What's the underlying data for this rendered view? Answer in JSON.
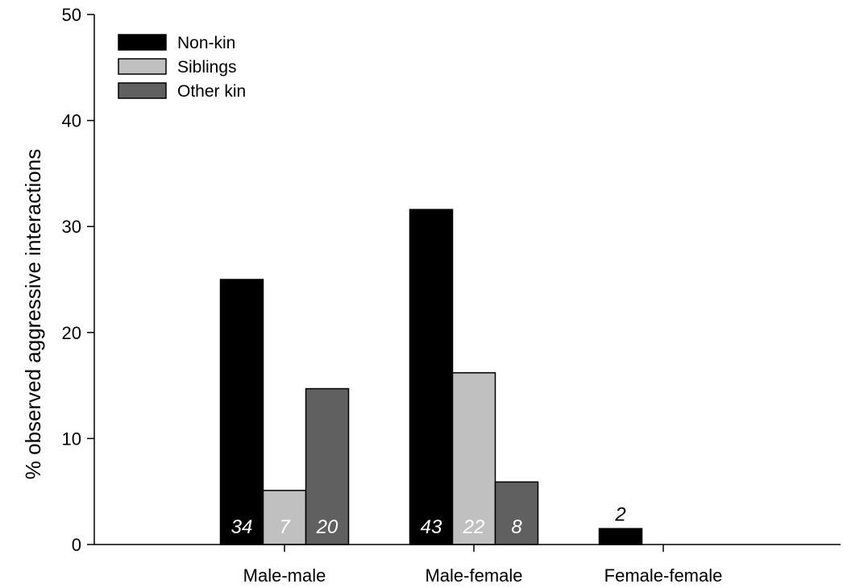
{
  "chart_data": {
    "type": "bar",
    "title": "",
    "xlabel": "",
    "ylabel": "% observed aggressive interactions",
    "ylim": [
      0,
      50
    ],
    "yticks": [
      "0",
      "10",
      "20",
      "30",
      "40",
      "50"
    ],
    "categories": [
      "Male-male",
      "Male-female",
      "Female-female"
    ],
    "series": [
      {
        "name": "Non-kin",
        "color": "#000000",
        "values": [
          25.0,
          31.6,
          1.5
        ],
        "labels": [
          "34",
          "43",
          "2"
        ]
      },
      {
        "name": "Siblings",
        "color": "#c0c0c0",
        "values": [
          5.1,
          16.2,
          0
        ],
        "labels": [
          "7",
          "22",
          ""
        ]
      },
      {
        "name": "Other kin",
        "color": "#606060",
        "values": [
          14.7,
          5.9,
          0
        ],
        "labels": [
          "20",
          "8",
          ""
        ]
      }
    ],
    "grid": false,
    "legend": "top-left"
  }
}
